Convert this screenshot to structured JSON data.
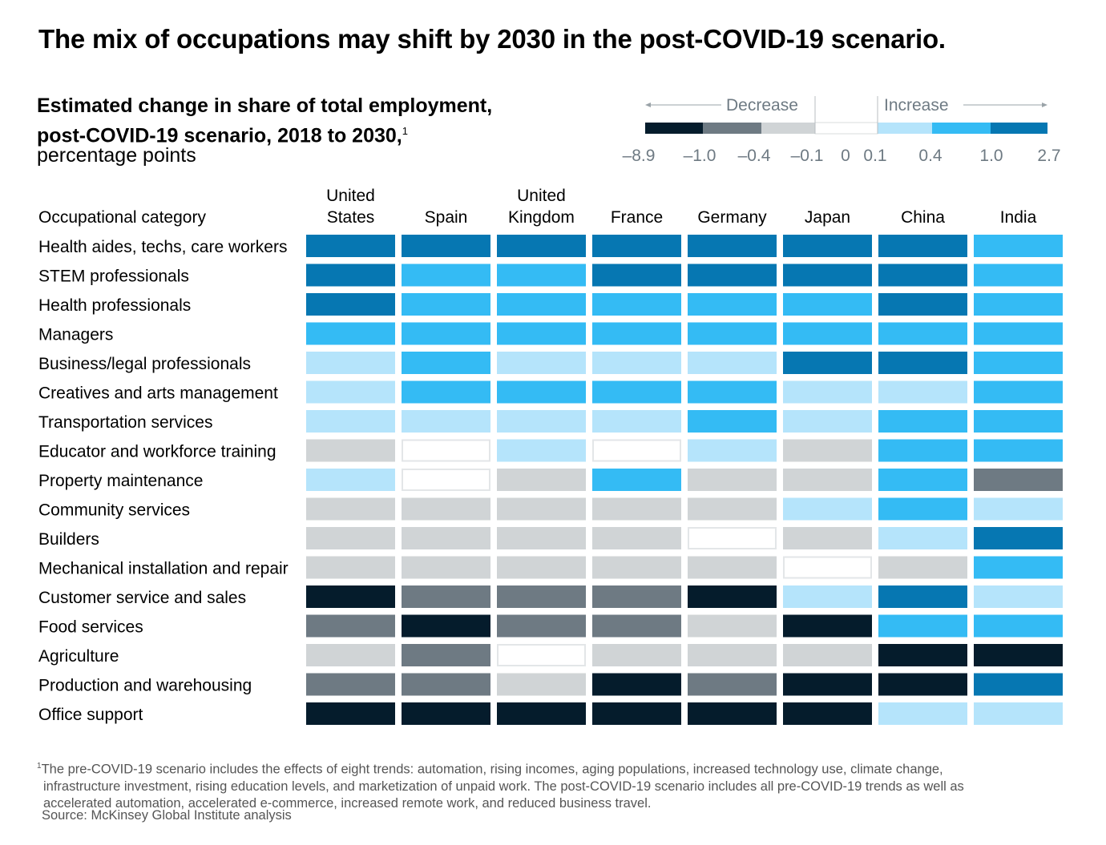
{
  "title": "The mix of occupations may shift by 2030 in the post-COVID-19 scenario.",
  "subtitle_line1": "Estimated change in share of total employment,",
  "subtitle_line2": "post-COVID-19 scenario, 2018 to 2030,",
  "subtitle_footnote_marker": "1",
  "units": "percentage points",
  "footnote_marker": "1",
  "footnote_lines": [
    "The pre-COVID-19 scenario includes the effects of eight trends: automation, rising incomes, aging populations, increased technology use, climate change,",
    "infrastructure investment, rising education levels, and marketization of unpaid work. The post-COVID-19 scenario includes all pre-COVID-19 trends as well as",
    "accelerated automation, accelerated e-commerce, increased remote work, and reduced business travel."
  ],
  "source": "Source: McKinsey Global Institute analysis",
  "chart_data": {
    "type": "heatmap",
    "row_header": "Occupational category",
    "legend": {
      "decrease_label": "Decrease",
      "increase_label": "Increase",
      "ticks": [
        "–8.9",
        "–1.0",
        "–0.4",
        "–0.1",
        "0",
        "0.1",
        "0.4",
        "1.0",
        "2.7"
      ],
      "bins": [
        {
          "range": [
            -8.9,
            -1.0
          ],
          "color": "#051c2c"
        },
        {
          "range": [
            -1.0,
            -0.4
          ],
          "color": "#6e7a83"
        },
        {
          "range": [
            -0.4,
            -0.1
          ],
          "color": "#d0d4d6"
        },
        {
          "range": [
            -0.1,
            0.1
          ],
          "color": "#ffffff"
        },
        {
          "range": [
            0.1,
            0.4
          ],
          "color": "#b5e4fb"
        },
        {
          "range": [
            0.4,
            1.0
          ],
          "color": "#34bbf4"
        },
        {
          "range": [
            1.0,
            2.7
          ],
          "color": "#0677b2"
        }
      ]
    },
    "columns": [
      [
        "United",
        "States"
      ],
      [
        "Spain"
      ],
      [
        "United",
        "Kingdom"
      ],
      [
        "France"
      ],
      [
        "Germany"
      ],
      [
        "Japan"
      ],
      [
        "China"
      ],
      [
        "India"
      ]
    ],
    "rows": [
      "Health aides, techs, care workers",
      "STEM professionals",
      "Health professionals",
      "Managers",
      "Business/legal professionals",
      "Creatives and arts management",
      "Transportation services",
      "Educator and workforce training",
      "Property maintenance",
      "Community services",
      "Builders",
      "Mechanical installation and repair",
      "Customer service and sales",
      "Food services",
      "Agriculture",
      "Production and warehousing",
      "Office support"
    ],
    "value_bins": [
      [
        6,
        6,
        6,
        6,
        6,
        6,
        6,
        5
      ],
      [
        6,
        5,
        5,
        6,
        6,
        6,
        6,
        5
      ],
      [
        6,
        5,
        5,
        5,
        5,
        5,
        6,
        5
      ],
      [
        5,
        5,
        5,
        5,
        5,
        5,
        5,
        5
      ],
      [
        4,
        5,
        4,
        4,
        4,
        6,
        6,
        5
      ],
      [
        4,
        5,
        5,
        5,
        5,
        4,
        4,
        5
      ],
      [
        4,
        4,
        4,
        4,
        5,
        4,
        5,
        5
      ],
      [
        2,
        3,
        4,
        3,
        4,
        2,
        5,
        5
      ],
      [
        4,
        3,
        2,
        5,
        2,
        2,
        5,
        1
      ],
      [
        2,
        2,
        2,
        2,
        2,
        4,
        5,
        4
      ],
      [
        2,
        2,
        2,
        2,
        3,
        2,
        4,
        6
      ],
      [
        2,
        2,
        2,
        2,
        2,
        3,
        2,
        5
      ],
      [
        0,
        1,
        1,
        1,
        0,
        4,
        6,
        4
      ],
      [
        1,
        0,
        1,
        1,
        2,
        0,
        5,
        5
      ],
      [
        2,
        1,
        3,
        2,
        2,
        2,
        0,
        0
      ],
      [
        1,
        1,
        2,
        0,
        1,
        0,
        0,
        6
      ],
      [
        0,
        0,
        0,
        0,
        0,
        0,
        4,
        4
      ]
    ]
  }
}
